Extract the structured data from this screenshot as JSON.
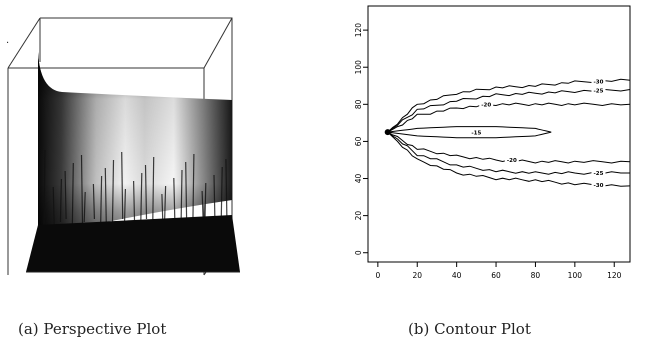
{
  "captions": {
    "a": "(a) Perspective Plot",
    "b": "(b) Contour Plot"
  },
  "chart_data": [
    {
      "type": "surface",
      "title": "",
      "colormap": "grayscale"
    },
    {
      "type": "contour",
      "title": "",
      "xlabel": "",
      "ylabel": "",
      "xlim": [
        -5,
        128
      ],
      "ylim": [
        -5,
        133
      ],
      "x_ticks": [
        0,
        20,
        40,
        60,
        80,
        100,
        120
      ],
      "y_ticks": [
        0,
        20,
        40,
        60,
        80,
        100,
        120
      ],
      "grid": false,
      "levels": [
        {
          "label": "-15",
          "points": [
            [
              5,
              65
            ],
            [
              20,
              67
            ],
            [
              40,
              68
            ],
            [
              60,
              68
            ],
            [
              80,
              67
            ],
            [
              88,
              65
            ],
            [
              80,
              63
            ],
            [
              60,
              62
            ],
            [
              40,
              62
            ],
            [
              20,
              63
            ],
            [
              5,
              65
            ]
          ]
        },
        {
          "label": "-20",
          "points": [
            [
              5,
              65
            ],
            [
              20,
              74
            ],
            [
              40,
              78
            ],
            [
              60,
              80
            ],
            [
              80,
              80
            ],
            [
              100,
              80
            ],
            [
              128,
              80
            ]
          ]
        },
        {
          "label": "-20",
          "points": [
            [
              5,
              65
            ],
            [
              20,
              56
            ],
            [
              40,
              52
            ],
            [
              60,
              50
            ],
            [
              80,
              49
            ],
            [
              100,
              49
            ],
            [
              128,
              49
            ]
          ]
        },
        {
          "label": "-25",
          "points": [
            [
              5,
              65
            ],
            [
              20,
              77
            ],
            [
              40,
              82
            ],
            [
              60,
              85
            ],
            [
              80,
              86
            ],
            [
              100,
              87
            ],
            [
              128,
              88
            ]
          ]
        },
        {
          "label": "-25",
          "points": [
            [
              5,
              65
            ],
            [
              20,
              53
            ],
            [
              40,
              47
            ],
            [
              60,
              44
            ],
            [
              80,
              43
            ],
            [
              100,
              43
            ],
            [
              128,
              43
            ]
          ]
        },
        {
          "label": "-30",
          "points": [
            [
              5,
              65
            ],
            [
              20,
              80
            ],
            [
              40,
              86
            ],
            [
              60,
              89
            ],
            [
              80,
              90
            ],
            [
              100,
              92
            ],
            [
              128,
              93
            ]
          ]
        },
        {
          "label": "-30",
          "points": [
            [
              5,
              65
            ],
            [
              20,
              50
            ],
            [
              40,
              43
            ],
            [
              60,
              40
            ],
            [
              80,
              39
            ],
            [
              100,
              37
            ],
            [
              128,
              36
            ]
          ]
        }
      ]
    }
  ]
}
